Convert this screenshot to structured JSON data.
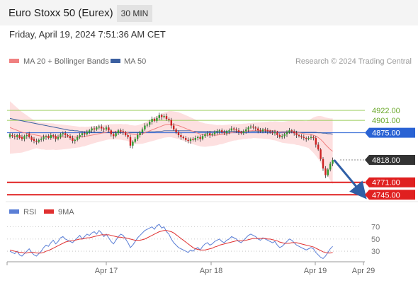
{
  "header": {
    "title": "Euro Stoxx 50 (Eurex)",
    "timeframe": "30 MIN",
    "datetime": "Friday, April 19, 2024 7:51:36 AM CET"
  },
  "legend": {
    "ma20_label": "MA 20 + Bollinger Bands",
    "ma50_label": "MA 50",
    "credit": "Research © 2024 Trading Central",
    "rsi_label": "RSI",
    "ma9_label": "9MA"
  },
  "colors": {
    "bull": "#2e9b2e",
    "bear": "#cc2222",
    "ma20": "#f08080",
    "ma50": "#3a5fa0",
    "bands": "#fde0e0",
    "resistance": "#9acd5a",
    "support": "#e02020",
    "pivot": "#2a63d4",
    "last": "#333333",
    "arrow": "#2f5fa6",
    "rsi": "#5b7fd6",
    "rsi_ma": "#e03030"
  },
  "chart_data": [
    {
      "type": "candlestick",
      "title": "",
      "x_ticks": [
        "Apr 17",
        "Apr 18",
        "Apr 19",
        "Apr 29"
      ],
      "ylim": [
        4735,
        5005
      ],
      "levels": [
        {
          "value": 4922.0,
          "label": "4922.00",
          "kind": "resistance"
        },
        {
          "value": 4901.0,
          "label": "4901.00",
          "kind": "resistance"
        },
        {
          "value": 4875.0,
          "label": "4875.00",
          "kind": "pivot"
        },
        {
          "value": 4818.0,
          "label": "4818.00",
          "kind": "last"
        },
        {
          "value": 4771.0,
          "label": "4771.00",
          "kind": "support"
        },
        {
          "value": 4745.0,
          "label": "4745.00",
          "kind": "support"
        }
      ],
      "close": [
        4872,
        4868,
        4866,
        4870,
        4864,
        4862,
        4868,
        4870,
        4866,
        4860,
        4858,
        4856,
        4860,
        4862,
        4866,
        4868,
        4864,
        4870,
        4868,
        4862,
        4866,
        4872,
        4874,
        4870,
        4868,
        4864,
        4858,
        4860,
        4866,
        4870,
        4874,
        4872,
        4876,
        4880,
        4884,
        4882,
        4886,
        4888,
        4884,
        4882,
        4886,
        4880,
        4872,
        4868,
        4874,
        4880,
        4878,
        4876,
        4870,
        4866,
        4848,
        4856,
        4862,
        4870,
        4876,
        4882,
        4890,
        4892,
        4898,
        4904,
        4900,
        4906,
        4912,
        4908,
        4910,
        4904,
        4902,
        4890,
        4882,
        4876,
        4870,
        4866,
        4864,
        4860,
        4858,
        4862,
        4860,
        4864,
        4866,
        4862,
        4868,
        4872,
        4874,
        4870,
        4872,
        4876,
        4878,
        4880,
        4876,
        4874,
        4878,
        4880,
        4884,
        4882,
        4880,
        4876,
        4874,
        4878,
        4882,
        4886,
        4888,
        4886,
        4884,
        4880,
        4878,
        4882,
        4880,
        4878,
        4876,
        4874,
        4876,
        4870,
        4866,
        4868,
        4872,
        4876,
        4880,
        4878,
        4874,
        4870,
        4868,
        4866,
        4864,
        4862,
        4864,
        4866,
        4864,
        4850,
        4840,
        4820,
        4800,
        4786,
        4798,
        4810,
        4818
      ],
      "open": [
        4866,
        4870,
        4868,
        4866,
        4870,
        4866,
        4862,
        4868,
        4872,
        4866,
        4862,
        4858,
        4856,
        4860,
        4862,
        4866,
        4868,
        4864,
        4870,
        4868,
        4862,
        4866,
        4872,
        4874,
        4870,
        4868,
        4864,
        4858,
        4860,
        4866,
        4870,
        4874,
        4872,
        4876,
        4880,
        4884,
        4882,
        4886,
        4888,
        4884,
        4882,
        4886,
        4880,
        4872,
        4868,
        4874,
        4880,
        4878,
        4876,
        4870,
        4866,
        4848,
        4856,
        4862,
        4870,
        4876,
        4882,
        4890,
        4892,
        4898,
        4904,
        4900,
        4906,
        4912,
        4908,
        4910,
        4904,
        4902,
        4890,
        4882,
        4876,
        4870,
        4866,
        4864,
        4860,
        4858,
        4862,
        4860,
        4864,
        4866,
        4862,
        4868,
        4872,
        4874,
        4870,
        4872,
        4876,
        4878,
        4880,
        4876,
        4874,
        4878,
        4880,
        4884,
        4882,
        4880,
        4876,
        4874,
        4878,
        4882,
        4886,
        4888,
        4886,
        4884,
        4880,
        4878,
        4882,
        4880,
        4878,
        4876,
        4874,
        4876,
        4870,
        4866,
        4868,
        4872,
        4876,
        4880,
        4878,
        4874,
        4870,
        4868,
        4866,
        4864,
        4862,
        4864,
        4866,
        4864,
        4850,
        4840,
        4820,
        4800,
        4786,
        4798,
        4810
      ],
      "ma20": [
        4886,
        4884,
        4882,
        4880,
        4878,
        4876,
        4875,
        4874,
        4873,
        4872,
        4871,
        4870,
        4869,
        4868,
        4868,
        4867,
        4867,
        4867,
        4867,
        4866,
        4866,
        4866,
        4866,
        4866,
        4866,
        4866,
        4866,
        4866,
        4866,
        4866,
        4867,
        4867,
        4868,
        4869,
        4870,
        4871,
        4872,
        4873,
        4874,
        4875,
        4876,
        4877,
        4877,
        4877,
        4877,
        4877,
        4877,
        4876,
        4876,
        4875,
        4873,
        4872,
        4871,
        4871,
        4872,
        4873,
        4875,
        4877,
        4879,
        4881,
        4883,
        4885,
        4887,
        4889,
        4891,
        4892,
        4893,
        4893,
        4892,
        4891,
        4890,
        4888,
        4886,
        4884,
        4882,
        4880,
        4878,
        4876,
        4874,
        4872,
        4871,
        4870,
        4870,
        4870,
        4870,
        4870,
        4870,
        4871,
        4871,
        4872,
        4873,
        4874,
        4875,
        4876,
        4876,
        4877,
        4877,
        4878,
        4878,
        4879,
        4879,
        4880,
        4880,
        4880,
        4880,
        4880,
        4880,
        4880,
        4880,
        4879,
        4879,
        4878,
        4877,
        4876,
        4876,
        4876,
        4876,
        4876,
        4876,
        4875,
        4875,
        4874,
        4873,
        4872,
        4872,
        4871,
        4870,
        4868,
        4865,
        4861,
        4856,
        4850,
        4845,
        4840,
        4836
      ],
      "ma50": [
        4905,
        4904,
        4903,
        4902,
        4901,
        4900,
        4899,
        4898,
        4897,
        4896,
        4895,
        4894,
        4893,
        4892,
        4891,
        4890,
        4889,
        4888,
        4887,
        4886,
        4885,
        4884,
        4883,
        4882,
        4881,
        4880,
        4880,
        4879,
        4879,
        4878,
        4878,
        4877,
        4877,
        4877,
        4876,
        4876,
        4876,
        4876,
        4876,
        4876,
        4876,
        4876,
        4876,
        4876,
        4876,
        4876,
        4876,
        4876,
        4876,
        4876,
        4876,
        4876,
        4876,
        4876,
        4876,
        4876,
        4876,
        4877,
        4877,
        4877,
        4877,
        4878,
        4878,
        4878,
        4879,
        4879,
        4879,
        4879,
        4879,
        4879,
        4879,
        4879,
        4879,
        4879,
        4879,
        4879,
        4878,
        4878,
        4878,
        4878,
        4878,
        4878,
        4878,
        4878,
        4878,
        4878,
        4878,
        4878,
        4878,
        4878,
        4878,
        4878,
        4878,
        4878,
        4878,
        4878,
        4878,
        4878,
        4878,
        4878,
        4878,
        4878,
        4878,
        4878,
        4878,
        4878,
        4878,
        4878,
        4878,
        4878,
        4878,
        4878,
        4877,
        4877,
        4877,
        4877,
        4877,
        4877,
        4877,
        4877,
        4876,
        4876,
        4876,
        4876,
        4876,
        4876,
        4876,
        4876,
        4875,
        4875,
        4874,
        4874,
        4873,
        4873,
        4872
      ]
    },
    {
      "type": "line",
      "title": "",
      "series": [
        {
          "name": "RSI"
        },
        {
          "name": "9MA"
        }
      ],
      "ylim": [
        15,
        80
      ],
      "y_ticks": [
        70,
        50,
        30
      ],
      "rsi": [
        30,
        28,
        26,
        30,
        24,
        22,
        26,
        30,
        34,
        28,
        24,
        22,
        26,
        30,
        36,
        40,
        38,
        44,
        48,
        42,
        46,
        52,
        54,
        50,
        48,
        46,
        44,
        48,
        52,
        56,
        50,
        54,
        58,
        56,
        60,
        62,
        58,
        64,
        60,
        54,
        58,
        52,
        46,
        42,
        48,
        54,
        58,
        56,
        50,
        44,
        36,
        40,
        46,
        52,
        56,
        60,
        64,
        66,
        68,
        70,
        66,
        72,
        74,
        68,
        70,
        62,
        58,
        50,
        44,
        40,
        36,
        34,
        32,
        30,
        28,
        32,
        30,
        34,
        36,
        32,
        38,
        42,
        44,
        40,
        42,
        46,
        48,
        50,
        46,
        44,
        48,
        50,
        54,
        52,
        50,
        46,
        44,
        48,
        52,
        56,
        58,
        56,
        54,
        50,
        48,
        52,
        50,
        48,
        46,
        44,
        46,
        40,
        36,
        38,
        42,
        46,
        50,
        48,
        44,
        40,
        38,
        36,
        34,
        32,
        34,
        36,
        34,
        28,
        24,
        20,
        18,
        22,
        28,
        34,
        38
      ],
      "rsi_ma": [
        32,
        31,
        30,
        29,
        28,
        28,
        27,
        27,
        28,
        28,
        28,
        27,
        27,
        27,
        28,
        30,
        31,
        33,
        35,
        37,
        39,
        41,
        43,
        45,
        46,
        47,
        47,
        48,
        49,
        50,
        50,
        51,
        52,
        52,
        53,
        54,
        55,
        56,
        57,
        57,
        57,
        57,
        56,
        55,
        54,
        53,
        53,
        52,
        52,
        51,
        50,
        49,
        48,
        48,
        48,
        49,
        50,
        52,
        54,
        56,
        58,
        60,
        62,
        63,
        64,
        64,
        63,
        62,
        60,
        57,
        54,
        51,
        48,
        45,
        42,
        39,
        36,
        34,
        33,
        32,
        32,
        32,
        33,
        34,
        35,
        37,
        38,
        40,
        41,
        42,
        43,
        44,
        45,
        46,
        47,
        47,
        47,
        47,
        48,
        49,
        50,
        51,
        51,
        51,
        51,
        51,
        51,
        50,
        50,
        49,
        48,
        47,
        45,
        44,
        43,
        43,
        43,
        44,
        44,
        44,
        43,
        42,
        41,
        40,
        39,
        38,
        37,
        35,
        33,
        31,
        29,
        28,
        27,
        27,
        28
      ]
    }
  ]
}
